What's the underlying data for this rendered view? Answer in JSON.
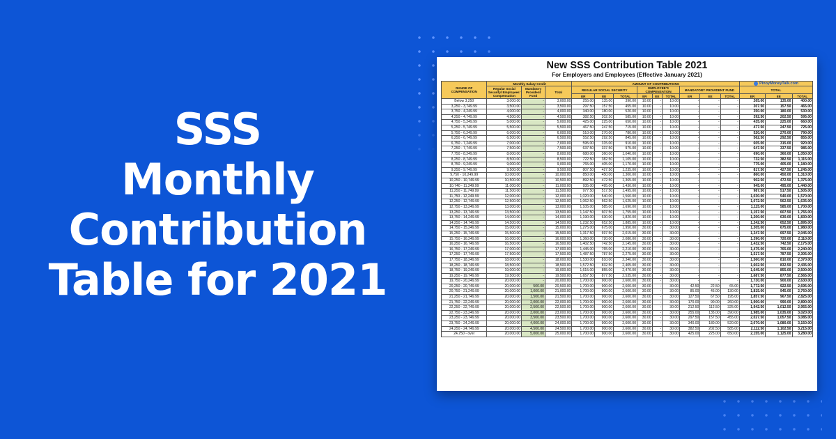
{
  "headline": {
    "line1": "SSS",
    "line2": "Monthly",
    "line3": "Contribution",
    "line4": "Table for 2021"
  },
  "table": {
    "title": "New SSS Contribution Table 2021",
    "subtitle": "For Employers and Employees (Effective January 2021)",
    "logo_text": "PinoyMoneyTalk.com",
    "headers": {
      "range": "RANGE OF COMPENSATION",
      "msc": "Monthly Salary Credit",
      "regular": "Regular Social Security/ Employees' Compensation",
      "mpf": "Mandatory Provident Fund",
      "total": "Total",
      "amount": "AMOUNT OF CONTRIBUTIONS",
      "rss": "REGULAR SOCIAL SECURITY",
      "ec": "EMPLOYEE'S COMPENSATION",
      "mpf_upper": "MANDATORY PROVIDENT FUND",
      "total_upper": "TOTAL",
      "er": "ER",
      "ee": "EE",
      "tot": "TOTAL"
    },
    "colors": {
      "header": "#f6c95a",
      "mpf_col": "#d9e7c4",
      "background": "#0d55d6"
    },
    "rows": [
      [
        "Below 3,250",
        "3,000.00",
        "-",
        "3,000.00",
        "255.00",
        "135.00",
        "390.00",
        "10.00",
        "-",
        "10.00",
        "-",
        "-",
        "-",
        "265.00",
        "135.00",
        "400.00"
      ],
      [
        "3,250 - 3,749.99",
        "3,500.00",
        "-",
        "3,500.00",
        "297.50",
        "157.50",
        "455.00",
        "10.00",
        "-",
        "10.00",
        "-",
        "-",
        "-",
        "307.50",
        "157.50",
        "465.00"
      ],
      [
        "3,750 - 4,249.99",
        "4,000.00",
        "-",
        "4,000.00",
        "340.00",
        "180.00",
        "520.00",
        "10.00",
        "-",
        "10.00",
        "-",
        "-",
        "-",
        "350.00",
        "180.00",
        "530.00"
      ],
      [
        "4,250 - 4,749.99",
        "4,500.00",
        "-",
        "4,500.00",
        "382.50",
        "202.50",
        "585.00",
        "10.00",
        "-",
        "10.00",
        "-",
        "-",
        "-",
        "392.50",
        "202.50",
        "595.00"
      ],
      [
        "4,750 - 5,249.99",
        "5,000.00",
        "-",
        "5,000.00",
        "425.00",
        "225.00",
        "650.00",
        "10.00",
        "-",
        "10.00",
        "-",
        "-",
        "-",
        "435.00",
        "225.00",
        "660.00"
      ],
      [
        "5,250 - 5,749.99",
        "5,500.00",
        "-",
        "5,500.00",
        "467.50",
        "247.50",
        "715.00",
        "10.00",
        "-",
        "10.00",
        "-",
        "-",
        "-",
        "477.50",
        "247.50",
        "725.00"
      ],
      [
        "5,750 - 6,249.99",
        "6,000.00",
        "-",
        "6,000.00",
        "510.00",
        "270.00",
        "780.00",
        "10.00",
        "-",
        "10.00",
        "-",
        "-",
        "-",
        "520.00",
        "270.00",
        "790.00"
      ],
      [
        "6,250 - 6,749.99",
        "6,500.00",
        "-",
        "6,500.00",
        "552.50",
        "292.50",
        "845.00",
        "10.00",
        "-",
        "10.00",
        "-",
        "-",
        "-",
        "562.50",
        "292.50",
        "855.00"
      ],
      [
        "6,750 - 7,249.99",
        "7,000.00",
        "-",
        "7,000.00",
        "595.00",
        "315.00",
        "910.00",
        "10.00",
        "-",
        "10.00",
        "-",
        "-",
        "-",
        "605.00",
        "315.00",
        "920.00"
      ],
      [
        "7,250 - 7,749.99",
        "7,500.00",
        "-",
        "7,500.00",
        "637.50",
        "337.50",
        "975.00",
        "10.00",
        "-",
        "10.00",
        "-",
        "-",
        "-",
        "647.50",
        "337.50",
        "985.00"
      ],
      [
        "7,750 - 8,249.99",
        "8,000.00",
        "-",
        "8,000.00",
        "680.00",
        "360.00",
        "1,040.00",
        "10.00",
        "-",
        "10.00",
        "-",
        "-",
        "-",
        "690.00",
        "360.00",
        "1,050.00"
      ],
      [
        "8,250 - 8,749.99",
        "8,500.00",
        "-",
        "8,500.00",
        "722.50",
        "382.50",
        "1,105.00",
        "10.00",
        "-",
        "10.00",
        "-",
        "-",
        "-",
        "732.50",
        "382.50",
        "1,115.00"
      ],
      [
        "8,750 - 9,249.99",
        "9,000.00",
        "-",
        "9,000.00",
        "765.00",
        "405.00",
        "1,170.00",
        "10.00",
        "-",
        "10.00",
        "-",
        "-",
        "-",
        "775.00",
        "405.00",
        "1,180.00"
      ],
      [
        "9,250 - 9,749.99",
        "9,500.00",
        "-",
        "9,500.00",
        "807.50",
        "427.50",
        "1,235.00",
        "10.00",
        "-",
        "10.00",
        "-",
        "-",
        "-",
        "817.50",
        "427.50",
        "1,245.00"
      ],
      [
        "9,750 - 10,249.99",
        "10,000.00",
        "-",
        "10,000.00",
        "850.00",
        "450.00",
        "1,300.00",
        "10.00",
        "-",
        "10.00",
        "-",
        "-",
        "-",
        "860.00",
        "450.00",
        "1,310.00"
      ],
      [
        "10,250 - 10,749.99",
        "10,500.00",
        "-",
        "10,500.00",
        "892.50",
        "472.50",
        "1,365.00",
        "10.00",
        "-",
        "10.00",
        "-",
        "-",
        "-",
        "902.50",
        "472.50",
        "1,375.00"
      ],
      [
        "10,740 - 11,249.99",
        "11,000.00",
        "-",
        "11,000.00",
        "935.00",
        "495.00",
        "1,430.00",
        "10.00",
        "-",
        "10.00",
        "-",
        "-",
        "-",
        "945.00",
        "495.00",
        "1,440.00"
      ],
      [
        "11,250 - 11,749.99",
        "11,500.00",
        "-",
        "11,500.00",
        "977.50",
        "517.50",
        "1,495.00",
        "10.00",
        "-",
        "10.00",
        "-",
        "-",
        "-",
        "987.50",
        "517.50",
        "1,505.00"
      ],
      [
        "11,750 - 12,249.99",
        "12,000.00",
        "-",
        "12,000.00",
        "1,020.00",
        "540.00",
        "1,560.00",
        "10.00",
        "-",
        "10.00",
        "-",
        "-",
        "-",
        "1,030.00",
        "540.00",
        "1,570.00"
      ],
      [
        "12,250 - 12,749.99",
        "12,500.00",
        "-",
        "12,500.00",
        "1,062.50",
        "562.50",
        "1,625.00",
        "10.00",
        "-",
        "10.00",
        "-",
        "-",
        "-",
        "1,072.50",
        "562.50",
        "1,635.00"
      ],
      [
        "12,750 - 13,249.99",
        "13,000.00",
        "-",
        "13,000.00",
        "1,105.00",
        "585.00",
        "1,690.00",
        "10.00",
        "-",
        "10.00",
        "-",
        "-",
        "-",
        "1,115.00",
        "585.00",
        "1,700.00"
      ],
      [
        "13,250 - 13,749.99",
        "13,500.00",
        "-",
        "13,500.00",
        "1,147.50",
        "607.50",
        "1,755.00",
        "10.00",
        "-",
        "10.00",
        "-",
        "-",
        "-",
        "1,157.50",
        "607.50",
        "1,765.00"
      ],
      [
        "13,750 - 14,249.99",
        "14,000.00",
        "-",
        "14,000.00",
        "1,190.00",
        "630.00",
        "1,820.00",
        "10.00",
        "-",
        "10.00",
        "-",
        "-",
        "-",
        "1,200.00",
        "630.00",
        "1,830.00"
      ],
      [
        "14,250 - 14,749.99",
        "14,500.00",
        "-",
        "14,500.00",
        "1,232.50",
        "652.50",
        "1,885.00",
        "10.00",
        "-",
        "10.00",
        "-",
        "-",
        "-",
        "1,242.50",
        "652.50",
        "1,895.00"
      ],
      [
        "14,750 - 15,249.99",
        "15,000.00",
        "-",
        "15,000.00",
        "1,275.00",
        "675.00",
        "1,950.00",
        "30.00",
        "-",
        "30.00",
        "-",
        "-",
        "-",
        "1,305.00",
        "675.00",
        "1,980.00"
      ],
      [
        "15,250 - 15,749.99",
        "15,500.00",
        "-",
        "15,500.00",
        "1,317.50",
        "697.50",
        "2,015.00",
        "30.00",
        "-",
        "30.00",
        "-",
        "-",
        "-",
        "1,347.50",
        "697.50",
        "2,045.00"
      ],
      [
        "15,750 - 16,249.99",
        "16,000.00",
        "-",
        "16,000.00",
        "1,360.00",
        "720.00",
        "2,080.00",
        "30.00",
        "-",
        "30.00",
        "-",
        "-",
        "-",
        "1,390.00",
        "720.00",
        "2,110.00"
      ],
      [
        "16,250 - 16,749.99",
        "16,500.00",
        "-",
        "16,500.00",
        "1,402.50",
        "742.50",
        "2,145.00",
        "30.00",
        "-",
        "30.00",
        "-",
        "-",
        "-",
        "1,432.50",
        "742.50",
        "2,175.00"
      ],
      [
        "16,750 - 17,249.99",
        "17,000.00",
        "-",
        "17,000.00",
        "1,445.00",
        "765.00",
        "2,210.00",
        "30.00",
        "-",
        "30.00",
        "-",
        "-",
        "-",
        "1,475.00",
        "765.00",
        "2,240.00"
      ],
      [
        "17,250 - 17,749.99",
        "17,500.00",
        "-",
        "17,500.00",
        "1,487.50",
        "787.50",
        "2,275.00",
        "30.00",
        "-",
        "30.00",
        "-",
        "-",
        "-",
        "1,517.50",
        "787.50",
        "2,305.00"
      ],
      [
        "17,750 - 18,249.99",
        "18,000.00",
        "-",
        "18,000.00",
        "1,530.00",
        "810.00",
        "2,340.00",
        "30.00",
        "-",
        "30.00",
        "-",
        "-",
        "-",
        "1,560.00",
        "810.00",
        "2,370.00"
      ],
      [
        "18,250 - 18,749.99",
        "18,500.00",
        "-",
        "18,500.00",
        "1,572.50",
        "832.50",
        "2,405.00",
        "30.00",
        "-",
        "30.00",
        "-",
        "-",
        "-",
        "1,602.50",
        "832.50",
        "2,435.00"
      ],
      [
        "18,750 - 19,249.99",
        "19,000.00",
        "-",
        "19,000.00",
        "1,615.00",
        "855.00",
        "2,470.00",
        "30.00",
        "-",
        "30.00",
        "-",
        "-",
        "-",
        "1,645.00",
        "855.00",
        "2,500.00"
      ],
      [
        "19,250 - 19,749.99",
        "19,500.00",
        "-",
        "19,500.00",
        "1,657.50",
        "877.50",
        "2,535.00",
        "30.00",
        "-",
        "30.00",
        "-",
        "-",
        "-",
        "1,687.50",
        "877.50",
        "2,565.00"
      ],
      [
        "19,750 - 20,249.99",
        "20,000.00",
        "-",
        "20,000.00",
        "1,700.00",
        "900.00",
        "2,600.00",
        "30.00",
        "-",
        "30.00",
        "-",
        "-",
        "-",
        "1,730.00",
        "900.00",
        "2,630.00"
      ],
      [
        "20,250 - 20,749.99",
        "20,000.00",
        "500.00",
        "20,500.00",
        "1,700.00",
        "900.00",
        "2,600.00",
        "30.00",
        "-",
        "30.00",
        "42.50",
        "22.50",
        "65.00",
        "1,772.50",
        "922.50",
        "2,695.00"
      ],
      [
        "20,750 - 21,249.99",
        "20,000.00",
        "1,000.00",
        "21,000.00",
        "1,700.00",
        "900.00",
        "2,600.00",
        "30.00",
        "-",
        "30.00",
        "85.00",
        "45.00",
        "130.00",
        "1,815.00",
        "945.00",
        "2,760.00"
      ],
      [
        "21,250 - 21,749.99",
        "20,000.00",
        "1,500.00",
        "21,500.00",
        "1,700.00",
        "900.00",
        "2,600.00",
        "30.00",
        "-",
        "30.00",
        "127.50",
        "67.50",
        "195.00",
        "1,857.50",
        "967.50",
        "2,825.00"
      ],
      [
        "21,750 - 22,249.99",
        "20,000.00",
        "2,000.00",
        "22,000.00",
        "1,700.00",
        "900.00",
        "2,600.00",
        "30.00",
        "-",
        "30.00",
        "170.00",
        "90.00",
        "260.00",
        "1,900.00",
        "990.00",
        "2,890.00"
      ],
      [
        "22,250 - 22,749.99",
        "20,000.00",
        "2,500.00",
        "22,500.00",
        "1,700.00",
        "900.00",
        "2,600.00",
        "30.00",
        "-",
        "30.00",
        "212.50",
        "112.50",
        "325.00",
        "1,942.50",
        "1,012.50",
        "2,955.00"
      ],
      [
        "22,750 - 23,249.99",
        "20,000.00",
        "3,000.00",
        "23,000.00",
        "1,700.00",
        "900.00",
        "2,600.00",
        "30.00",
        "-",
        "30.00",
        "255.00",
        "135.00",
        "390.00",
        "1,985.00",
        "1,035.00",
        "3,020.00"
      ],
      [
        "23,250 - 23,749.99",
        "20,000.00",
        "3,500.00",
        "23,500.00",
        "1,700.00",
        "900.00",
        "2,600.00",
        "30.00",
        "-",
        "30.00",
        "297.50",
        "157.50",
        "455.00",
        "2,027.50",
        "1,057.50",
        "3,085.00"
      ],
      [
        "23,750 - 24,249.99",
        "20,000.00",
        "4,000.00",
        "24,000.00",
        "1,700.00",
        "900.00",
        "2,600.00",
        "30.00",
        "-",
        "30.00",
        "340.00",
        "180.00",
        "520.00",
        "2,070.00",
        "1,080.00",
        "3,150.00"
      ],
      [
        "24,250 - 24,749.99",
        "20,000.00",
        "4,500.00",
        "24,500.00",
        "1,700.00",
        "900.00",
        "2,600.00",
        "30.00",
        "-",
        "30.00",
        "382.50",
        "202.50",
        "585.00",
        "2,112.50",
        "1,102.50",
        "3,215.00"
      ],
      [
        "24,750 - over",
        "20,000.00",
        "5,000.00",
        "25,000.00",
        "1,700.00",
        "900.00",
        "2,600.00",
        "30.00",
        "-",
        "30.00",
        "425.00",
        "225.00",
        "650.00",
        "2,155.00",
        "1,125.00",
        "3,280.00"
      ]
    ]
  }
}
